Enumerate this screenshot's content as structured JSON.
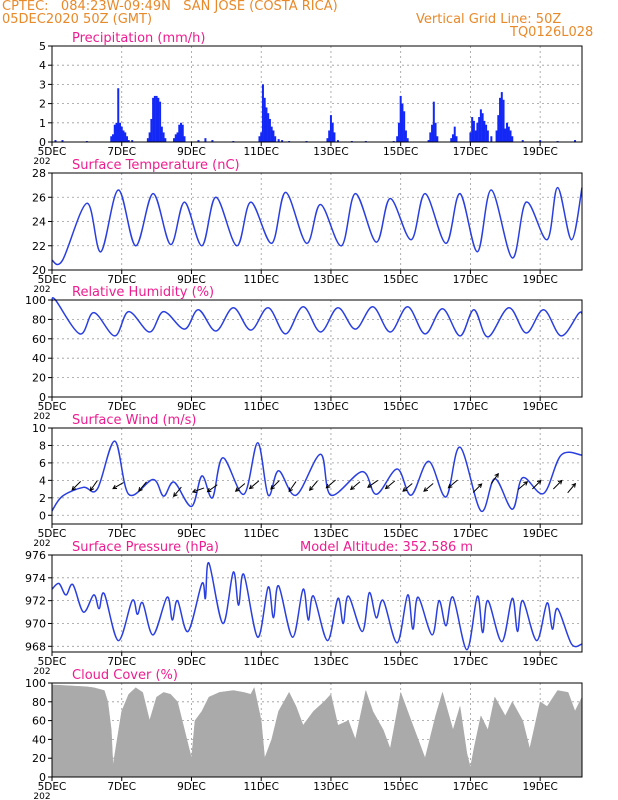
{
  "header": {
    "left_line1": "CPTEC:   084:23W-09:49N   SAN JOSE (COSTA RICA)",
    "left_line2": "05DEC2020 50Z (GMT)",
    "right_line1": "Vertical Grid Line: 50Z",
    "right_line2": "TQ0126L028"
  },
  "colors": {
    "header_text": "#e8892a",
    "panel_title": "#ee1d8f",
    "series_line": "#2a3fe0",
    "bars": "#1428f5",
    "cloud_fill": "#aaaaaa",
    "grid": "#9a9a9a"
  },
  "x_ticks": {
    "labels": [
      "5DEC",
      "7DEC",
      "9DEC",
      "11DEC",
      "13DEC",
      "15DEC",
      "17DEC",
      "19DEC"
    ],
    "days": [
      0,
      2,
      4,
      6,
      8,
      10,
      12,
      14
    ],
    "year_fragment": "202"
  },
  "chart_data": [
    {
      "type": "bar",
      "title": "Precipitation (mm/h)",
      "xlim": [
        0,
        15.2
      ],
      "ylim": [
        0,
        5
      ],
      "yticks": [
        0,
        1,
        2,
        3,
        4,
        5
      ],
      "x_unit": "days since 05DEC2020",
      "bars": [
        [
          0.1,
          0.1
        ],
        [
          0.3,
          0.1
        ],
        [
          1.0,
          0.05
        ],
        [
          1.7,
          0.3
        ],
        [
          1.75,
          0.4
        ],
        [
          1.8,
          0.9
        ],
        [
          1.85,
          1.0
        ],
        [
          1.9,
          2.8
        ],
        [
          1.95,
          1.0
        ],
        [
          2.0,
          0.8
        ],
        [
          2.05,
          0.6
        ],
        [
          2.1,
          0.5
        ],
        [
          2.15,
          0.3
        ],
        [
          2.2,
          0.1
        ],
        [
          2.3,
          0.1
        ],
        [
          2.75,
          0.2
        ],
        [
          2.8,
          0.5
        ],
        [
          2.85,
          1.2
        ],
        [
          2.9,
          2.3
        ],
        [
          2.95,
          2.4
        ],
        [
          3.0,
          2.4
        ],
        [
          3.05,
          2.3
        ],
        [
          3.1,
          2.1
        ],
        [
          3.15,
          0.8
        ],
        [
          3.2,
          0.5
        ],
        [
          3.25,
          0.2
        ],
        [
          3.5,
          0.2
        ],
        [
          3.55,
          0.4
        ],
        [
          3.6,
          0.5
        ],
        [
          3.65,
          0.9
        ],
        [
          3.7,
          1.0
        ],
        [
          3.75,
          0.9
        ],
        [
          3.8,
          0.3
        ],
        [
          4.2,
          0.1
        ],
        [
          4.4,
          0.2
        ],
        [
          4.6,
          0.1
        ],
        [
          5.2,
          0.05
        ],
        [
          5.95,
          0.3
        ],
        [
          6.0,
          0.5
        ],
        [
          6.05,
          3.0
        ],
        [
          6.1,
          2.3
        ],
        [
          6.15,
          1.8
        ],
        [
          6.2,
          1.5
        ],
        [
          6.25,
          1.2
        ],
        [
          6.3,
          0.8
        ],
        [
          6.35,
          0.6
        ],
        [
          6.4,
          0.3
        ],
        [
          6.5,
          0.15
        ],
        [
          6.6,
          0.1
        ],
        [
          6.8,
          0.05
        ],
        [
          7.3,
          0.05
        ],
        [
          7.9,
          0.2
        ],
        [
          7.95,
          0.6
        ],
        [
          8.0,
          1.4
        ],
        [
          8.05,
          1.0
        ],
        [
          8.1,
          0.5
        ],
        [
          8.2,
          0.1
        ],
        [
          8.6,
          0.05
        ],
        [
          9.0,
          0.05
        ],
        [
          9.8,
          0.05
        ],
        [
          9.9,
          0.3
        ],
        [
          9.95,
          1.0
        ],
        [
          10.0,
          2.4
        ],
        [
          10.05,
          2.0
        ],
        [
          10.1,
          1.6
        ],
        [
          10.15,
          0.6
        ],
        [
          10.2,
          0.2
        ],
        [
          10.8,
          0.1
        ],
        [
          10.85,
          0.5
        ],
        [
          10.9,
          0.9
        ],
        [
          10.95,
          2.1
        ],
        [
          11.0,
          1.0
        ],
        [
          11.05,
          0.3
        ],
        [
          11.45,
          0.2
        ],
        [
          11.5,
          0.4
        ],
        [
          11.55,
          0.8
        ],
        [
          11.6,
          0.3
        ],
        [
          12.0,
          0.5
        ],
        [
          12.05,
          1.3
        ],
        [
          12.1,
          1.1
        ],
        [
          12.15,
          0.6
        ],
        [
          12.2,
          1.0
        ],
        [
          12.25,
          1.3
        ],
        [
          12.3,
          1.7
        ],
        [
          12.35,
          1.5
        ],
        [
          12.4,
          1.1
        ],
        [
          12.45,
          0.9
        ],
        [
          12.5,
          0.6
        ],
        [
          12.6,
          0.3
        ],
        [
          12.75,
          0.6
        ],
        [
          12.8,
          1.4
        ],
        [
          12.85,
          2.3
        ],
        [
          12.9,
          2.6
        ],
        [
          12.95,
          2.2
        ],
        [
          13.0,
          0.7
        ],
        [
          13.05,
          1.0
        ],
        [
          13.1,
          0.8
        ],
        [
          13.15,
          0.6
        ],
        [
          13.2,
          0.3
        ],
        [
          13.5,
          0.1
        ],
        [
          14.0,
          0.1
        ],
        [
          14.5,
          0.05
        ],
        [
          15.0,
          0.1
        ]
      ]
    },
    {
      "type": "line",
      "title": "Surface Temperature (nC)",
      "xlim": [
        0,
        15.2
      ],
      "ylim": [
        20,
        28
      ],
      "yticks": [
        20,
        22,
        24,
        26,
        28
      ],
      "base": 20.8,
      "peaks": [
        [
          1.0,
          25.5
        ],
        [
          1.9,
          26.6
        ],
        [
          2.9,
          26.3
        ],
        [
          3.8,
          25.6
        ],
        [
          4.7,
          26.0
        ],
        [
          5.7,
          25.6
        ],
        [
          6.7,
          26.4
        ],
        [
          7.7,
          25.4
        ],
        [
          8.7,
          26.3
        ],
        [
          9.7,
          25.9
        ],
        [
          10.7,
          26.3
        ],
        [
          11.7,
          26.3
        ],
        [
          12.6,
          26.6
        ],
        [
          13.6,
          25.6
        ],
        [
          14.5,
          26.8
        ],
        [
          15.2,
          26.8
        ]
      ],
      "troughs": [
        [
          0.3,
          20.8
        ],
        [
          1.4,
          21.5
        ],
        [
          2.4,
          22.0
        ],
        [
          3.4,
          22.1
        ],
        [
          4.3,
          22.0
        ],
        [
          5.3,
          22.0
        ],
        [
          6.3,
          22.2
        ],
        [
          7.3,
          22.2
        ],
        [
          8.3,
          22.0
        ],
        [
          9.3,
          22.3
        ],
        [
          10.3,
          22.5
        ],
        [
          11.3,
          22.2
        ],
        [
          12.2,
          21.5
        ],
        [
          13.2,
          21.0
        ],
        [
          14.2,
          22.5
        ],
        [
          14.9,
          22.5
        ]
      ]
    },
    {
      "type": "line",
      "title": "Relative Humidity (%)",
      "xlim": [
        0,
        15.2
      ],
      "ylim": [
        0,
        100
      ],
      "yticks": [
        0,
        20,
        40,
        60,
        80,
        100
      ],
      "base": 99,
      "peaks": [
        [
          0.1,
          100
        ],
        [
          1.2,
          87
        ],
        [
          2.2,
          88
        ],
        [
          3.2,
          88
        ],
        [
          4.2,
          90
        ],
        [
          5.2,
          92
        ],
        [
          6.2,
          92
        ],
        [
          7.2,
          93
        ],
        [
          8.2,
          92
        ],
        [
          9.2,
          93
        ],
        [
          10.2,
          93
        ],
        [
          11.2,
          91
        ],
        [
          12.1,
          90
        ],
        [
          13.1,
          92
        ],
        [
          14.1,
          90
        ],
        [
          15.1,
          86
        ]
      ],
      "troughs": [
        [
          0.8,
          65
        ],
        [
          1.8,
          63
        ],
        [
          2.8,
          67
        ],
        [
          3.8,
          70
        ],
        [
          4.7,
          68
        ],
        [
          5.7,
          69
        ],
        [
          6.7,
          65
        ],
        [
          7.7,
          67
        ],
        [
          8.7,
          70
        ],
        [
          9.7,
          67
        ],
        [
          10.7,
          65
        ],
        [
          11.7,
          63
        ],
        [
          12.5,
          62
        ],
        [
          13.6,
          66
        ],
        [
          14.6,
          63
        ],
        [
          15.1,
          80
        ]
      ]
    },
    {
      "type": "line",
      "title": "Surface Wind (m/s)",
      "xlim": [
        0,
        15.2
      ],
      "ylim": [
        -1,
        10
      ],
      "yticks": [
        0,
        2,
        4,
        6,
        8,
        10
      ],
      "base": 0.5,
      "peaks": [
        [
          0.9,
          3.2
        ],
        [
          1.8,
          8.5
        ],
        [
          2.9,
          4.1
        ],
        [
          3.5,
          3.8
        ],
        [
          4.3,
          4.5
        ],
        [
          4.9,
          6.6
        ],
        [
          5.9,
          8.3
        ],
        [
          6.5,
          5.1
        ],
        [
          7.7,
          7.0
        ],
        [
          8.9,
          5.0
        ],
        [
          9.9,
          5.3
        ],
        [
          10.8,
          6.2
        ],
        [
          11.7,
          7.8
        ],
        [
          12.7,
          4.2
        ],
        [
          13.5,
          4.3
        ],
        [
          14.6,
          6.9
        ]
      ],
      "troughs": [
        [
          0.3,
          2.2
        ],
        [
          1.3,
          3.0
        ],
        [
          2.2,
          2.4
        ],
        [
          3.2,
          2.2
        ],
        [
          4.0,
          1.0
        ],
        [
          4.6,
          2.0
        ],
        [
          5.5,
          2.4
        ],
        [
          6.2,
          2.3
        ],
        [
          7.0,
          2.3
        ],
        [
          8.0,
          2.3
        ],
        [
          9.3,
          2.4
        ],
        [
          10.3,
          2.3
        ],
        [
          11.3,
          2.1
        ],
        [
          12.3,
          0.5
        ],
        [
          13.2,
          0.7
        ],
        [
          14.1,
          2.5
        ]
      ],
      "arrows": [
        [
          0.7,
          3.4,
          225
        ],
        [
          1.2,
          3.4,
          235
        ],
        [
          1.9,
          3.4,
          210
        ],
        [
          2.6,
          3.3,
          230
        ],
        [
          3.6,
          2.7,
          230
        ],
        [
          4.2,
          2.9,
          200
        ],
        [
          4.6,
          3.1,
          215
        ],
        [
          5.4,
          3.2,
          220
        ],
        [
          5.8,
          3.5,
          220
        ],
        [
          6.4,
          3.5,
          225
        ],
        [
          6.9,
          3.3,
          235
        ],
        [
          7.5,
          3.4,
          230
        ],
        [
          8.0,
          3.6,
          220
        ],
        [
          8.7,
          3.4,
          220
        ],
        [
          9.2,
          3.6,
          215
        ],
        [
          9.7,
          3.5,
          220
        ],
        [
          10.2,
          3.2,
          220
        ],
        [
          10.8,
          3.2,
          220
        ],
        [
          11.5,
          3.6,
          220
        ],
        [
          12.2,
          3.1,
          45
        ],
        [
          12.7,
          4.2,
          55
        ],
        [
          13.5,
          3.4,
          40
        ],
        [
          13.9,
          3.5,
          45
        ],
        [
          14.5,
          3.5,
          45
        ],
        [
          14.9,
          3.1,
          50
        ]
      ]
    },
    {
      "type": "line",
      "title": "Surface Pressure (hPa)",
      "annotation": "Model Altitude: 352.586 m",
      "xlim": [
        0,
        15.2
      ],
      "ylim": [
        967.5,
        976
      ],
      "yticks": [
        968,
        970,
        972,
        974,
        976
      ],
      "base": 973.0,
      "peaks": [
        [
          0.2,
          973.5
        ],
        [
          0.6,
          973.4
        ],
        [
          1.2,
          972.5
        ],
        [
          1.5,
          972.6
        ],
        [
          2.3,
          972.0
        ],
        [
          2.6,
          971.8
        ],
        [
          3.3,
          972.3
        ],
        [
          3.6,
          972.0
        ],
        [
          4.3,
          973.5
        ],
        [
          4.5,
          975.3
        ],
        [
          5.2,
          974.5
        ],
        [
          5.5,
          974.3
        ],
        [
          6.2,
          973.2
        ],
        [
          6.5,
          973.3
        ],
        [
          7.2,
          973.0
        ],
        [
          7.5,
          972.4
        ],
        [
          8.2,
          972.2
        ],
        [
          8.5,
          972.4
        ],
        [
          9.1,
          972.7
        ],
        [
          9.5,
          972.0
        ],
        [
          10.2,
          972.5
        ],
        [
          10.5,
          972.3
        ],
        [
          11.1,
          972.0
        ],
        [
          11.5,
          972.3
        ],
        [
          12.2,
          972.4
        ],
        [
          12.5,
          972.0
        ],
        [
          13.2,
          972.2
        ],
        [
          13.5,
          972.0
        ],
        [
          14.2,
          971.8
        ],
        [
          14.5,
          971.3
        ]
      ],
      "troughs": [
        [
          0.4,
          972.5
        ],
        [
          0.9,
          971.0
        ],
        [
          1.35,
          971.3
        ],
        [
          1.9,
          968.5
        ],
        [
          2.45,
          970.8
        ],
        [
          2.9,
          969.0
        ],
        [
          3.45,
          970.3
        ],
        [
          3.9,
          969.3
        ],
        [
          4.4,
          972.2
        ],
        [
          4.9,
          970.0
        ],
        [
          5.35,
          971.6
        ],
        [
          5.9,
          968.8
        ],
        [
          6.35,
          970.5
        ],
        [
          6.9,
          968.8
        ],
        [
          7.35,
          970.3
        ],
        [
          7.9,
          968.5
        ],
        [
          8.35,
          970.0
        ],
        [
          8.9,
          969.3
        ],
        [
          9.3,
          970.5
        ],
        [
          9.9,
          968.3
        ],
        [
          10.35,
          969.5
        ],
        [
          10.9,
          969.0
        ],
        [
          11.3,
          969.8
        ],
        [
          11.9,
          967.7
        ],
        [
          12.35,
          969.2
        ],
        [
          12.9,
          968.4
        ],
        [
          13.35,
          969.3
        ],
        [
          13.9,
          968.5
        ],
        [
          14.35,
          969.5
        ],
        [
          14.9,
          968.2
        ]
      ]
    },
    {
      "type": "area",
      "title": "Cloud Cover (%)",
      "xlim": [
        0,
        15.2
      ],
      "ylim": [
        0,
        100
      ],
      "yticks": [
        0,
        20,
        40,
        60,
        80,
        100
      ],
      "x": [
        0,
        0.5,
        1.0,
        1.2,
        1.5,
        1.6,
        1.7,
        1.75,
        2.0,
        2.2,
        2.4,
        2.6,
        2.8,
        3.0,
        3.2,
        3.4,
        3.6,
        3.8,
        4.0,
        4.1,
        4.3,
        4.5,
        4.8,
        5.2,
        5.5,
        5.7,
        5.8,
        6.0,
        6.1,
        6.3,
        6.5,
        6.8,
        7.0,
        7.2,
        7.5,
        7.8,
        8.0,
        8.2,
        8.5,
        8.7,
        9.0,
        9.2,
        9.5,
        9.7,
        10.0,
        10.3,
        10.5,
        10.7,
        11.0,
        11.2,
        11.5,
        11.7,
        11.9,
        12.0,
        12.1,
        12.3,
        12.5,
        12.7,
        13.0,
        13.2,
        13.5,
        13.7,
        14.0,
        14.2,
        14.5,
        14.8,
        15.0,
        15.2
      ],
      "values": [
        98,
        97,
        96,
        95,
        92,
        80,
        50,
        12,
        70,
        88,
        95,
        90,
        60,
        85,
        90,
        88,
        80,
        50,
        20,
        60,
        70,
        85,
        90,
        92,
        90,
        88,
        95,
        60,
        20,
        40,
        70,
        90,
        75,
        55,
        70,
        80,
        88,
        55,
        60,
        40,
        92,
        70,
        50,
        30,
        90,
        60,
        40,
        20,
        65,
        90,
        50,
        75,
        25,
        10,
        30,
        65,
        50,
        85,
        65,
        80,
        60,
        30,
        80,
        75,
        92,
        90,
        70,
        85
      ]
    }
  ]
}
